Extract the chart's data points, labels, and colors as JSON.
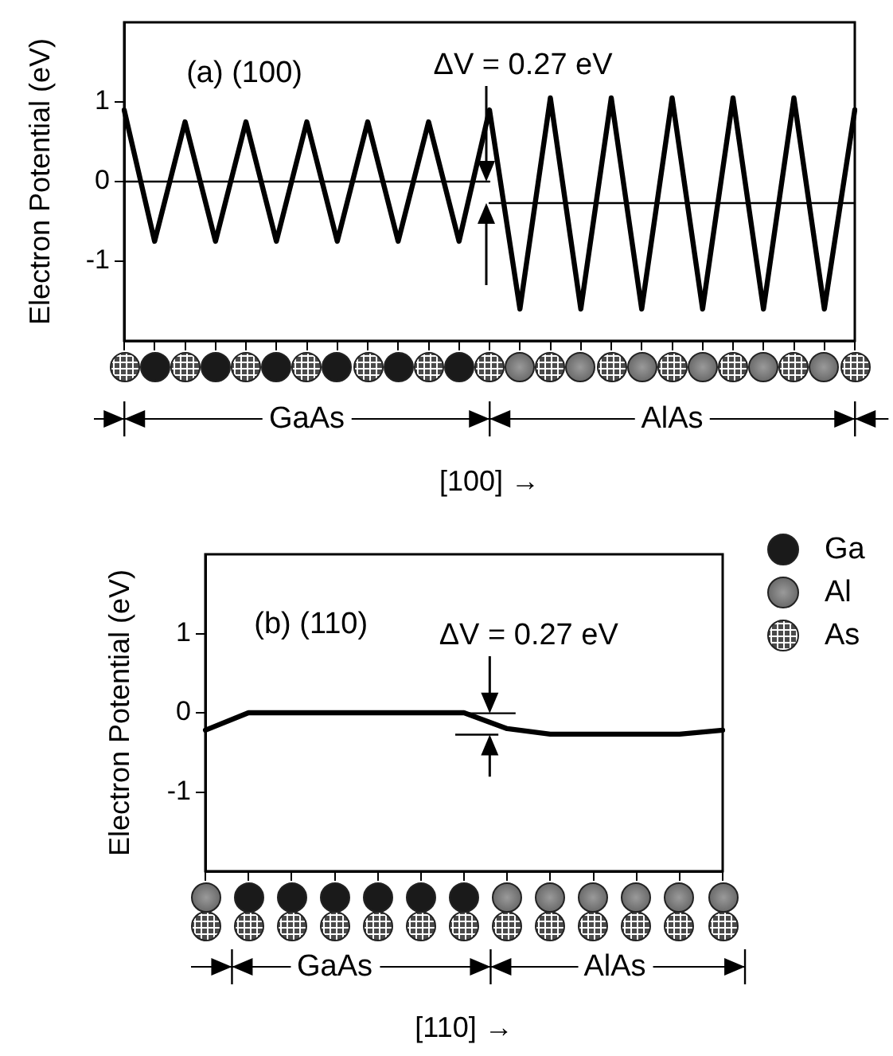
{
  "chart_data": [
    {
      "type": "line",
      "ylabel": "Electron Potential (eV)",
      "xlabel": "[100] →",
      "categories": [
        null,
        null,
        null,
        null,
        null,
        null,
        null,
        null,
        null,
        null,
        null,
        null,
        null,
        null,
        null,
        null,
        null,
        null,
        null,
        null,
        null,
        null,
        null,
        null,
        null
      ],
      "series": [
        {
          "color": "#000000",
          "values": [
            0.9,
            -0.75,
            0.75,
            -0.75,
            0.75,
            -0.75,
            0.75,
            -0.75,
            0.75,
            -0.75,
            0.75,
            -0.75,
            0.9,
            -1.6,
            1.05,
            -1.6,
            1.05,
            -1.6,
            1.05,
            -1.6,
            1.05,
            -1.6,
            1.05,
            -1.6,
            0.9
          ]
        },
        {
          "color": "#000000",
          "values": [
            0,
            0,
            0,
            0,
            0,
            0,
            0,
            0,
            0,
            0,
            0,
            0,
            0,
            null,
            null,
            null,
            null,
            null,
            null,
            null,
            null,
            null,
            null,
            null,
            null
          ]
        },
        {
          "color": "#000000",
          "values": [
            null,
            null,
            null,
            null,
            null,
            null,
            null,
            null,
            null,
            null,
            null,
            null,
            -0.27,
            -0.27,
            -0.27,
            -0.27,
            -0.27,
            -0.27,
            -0.27,
            -0.27,
            -0.27,
            -0.27,
            -0.27,
            -0.27,
            -0.27
          ]
        }
      ],
      "ylim": [
        -2,
        2
      ],
      "yticks": [
        -1,
        0,
        1
      ],
      "grid": false,
      "legend": false,
      "tick_labels": "y",
      "marker": "none",
      "annotations": [
        "(a) (100)",
        "ΔV = 0.27 eV",
        "GaAs",
        "AlAs"
      ]
    },
    {
      "type": "line",
      "ylabel": "Electron Potential (eV)",
      "xlabel": "[110] →",
      "categories": [
        null,
        null,
        null,
        null,
        null,
        null,
        null,
        null,
        null,
        null,
        null,
        null,
        null
      ],
      "series": [
        {
          "color": "#000000",
          "values": [
            -0.22,
            0,
            0,
            0,
            0,
            0,
            0,
            -0.2,
            -0.27,
            -0.27,
            -0.27,
            -0.27,
            -0.22
          ]
        }
      ],
      "ylim": [
        -2,
        2
      ],
      "yticks": [
        -1,
        0,
        1
      ],
      "grid": false,
      "legend": false,
      "tick_labels": "y",
      "marker": "none",
      "annotations": [
        "(b) (110)",
        "ΔV = 0.27 eV",
        "GaAs",
        "AlAs",
        "Ga",
        "Al",
        "As"
      ]
    }
  ]
}
